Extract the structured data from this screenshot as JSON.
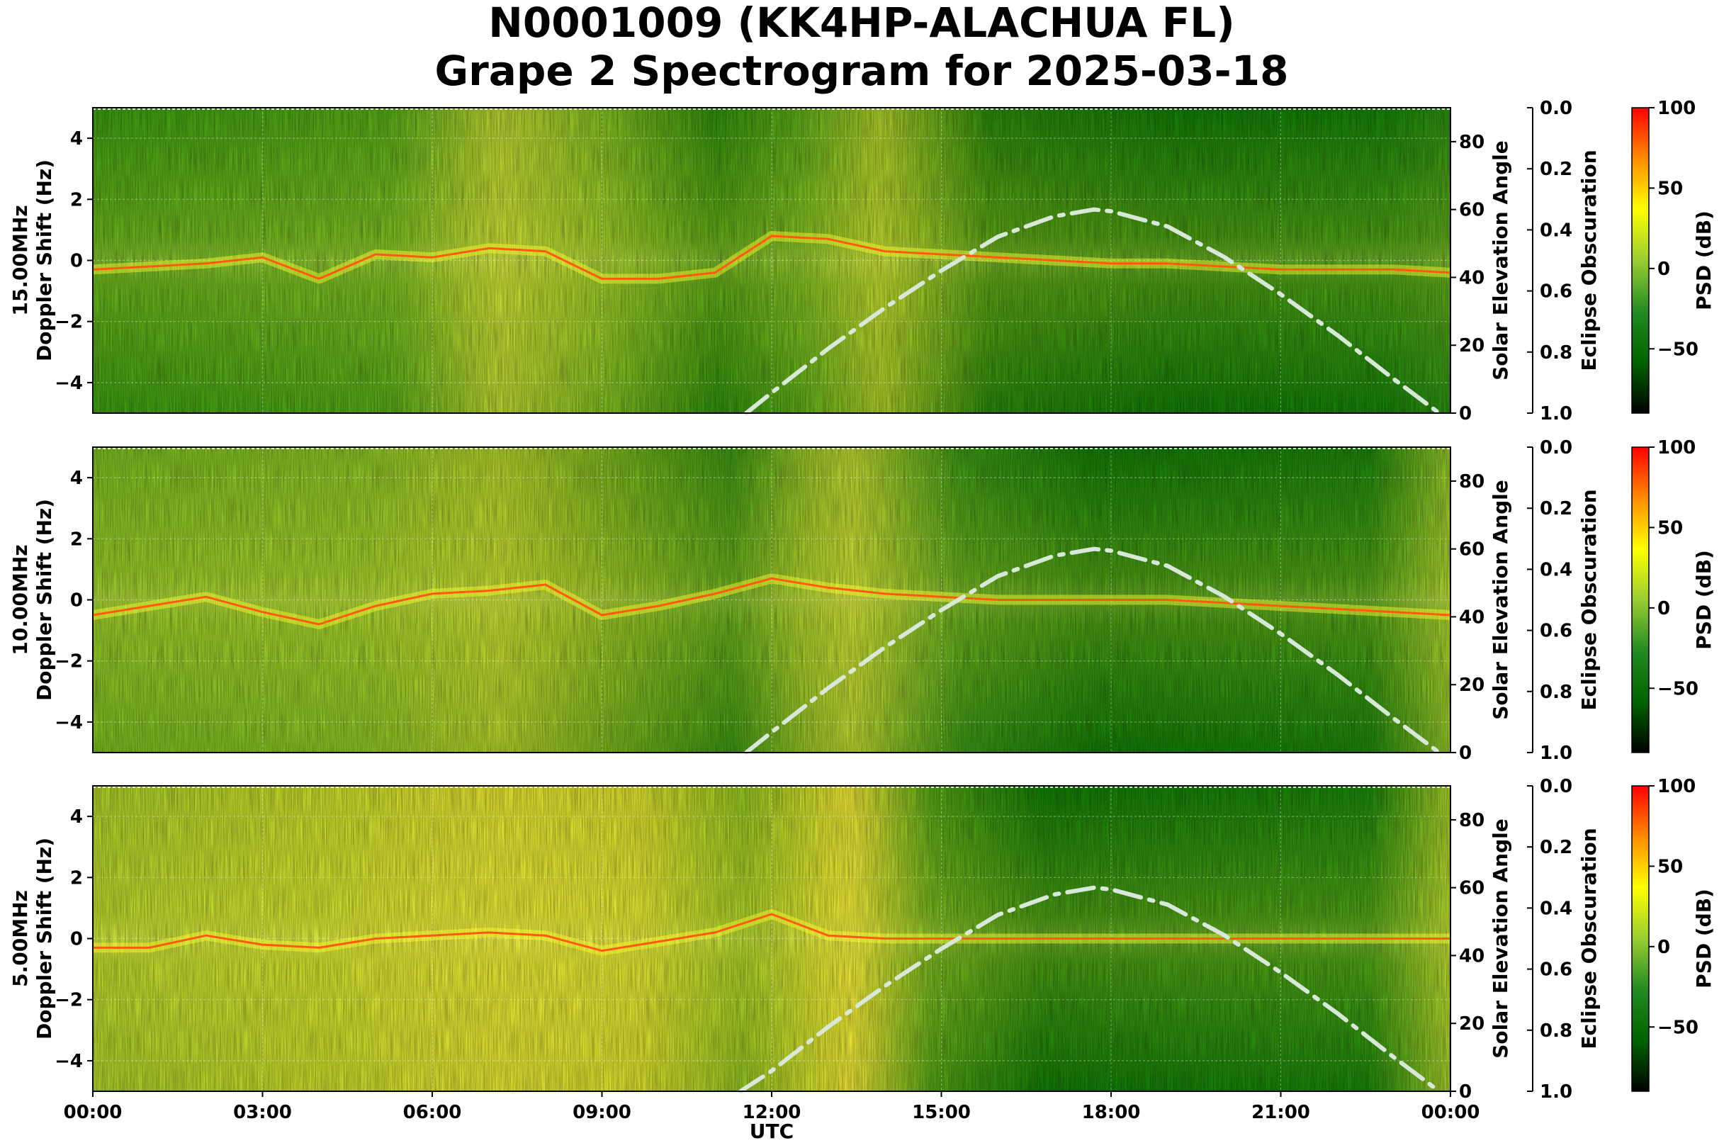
{
  "title": {
    "line1": "N0001009 (KK4HP-ALACHUA FL)",
    "line2": "Grape 2 Spectrogram for 2025-03-18"
  },
  "colors": {
    "colormap": [
      "#000000",
      "#006400",
      "#228b22",
      "#9acd32",
      "#ffff00",
      "#ff8c00",
      "#ff0000"
    ],
    "solar_curve": "#d8e8d8",
    "background_low": "#0a7a0a",
    "background_high": "#c8d820"
  },
  "chart_data": [
    {
      "type": "heatmap",
      "panel_label": "15.00MHz",
      "ylabel": "Doppler Shift (Hz)",
      "y2label": "Solar Elevation Angle",
      "y3label": "Eclipse Obscuration",
      "cbar_label": "PSD (dB)",
      "ylim": [
        -5,
        5
      ],
      "yticks": [
        -4,
        -2,
        0,
        2,
        4
      ],
      "y2lim": [
        0,
        90
      ],
      "y2ticks": [
        0,
        20,
        40,
        60,
        80
      ],
      "y3lim": [
        1.0,
        0.0
      ],
      "y3ticks": [
        "0.0",
        "0.2",
        "0.4",
        "0.6",
        "0.8",
        "1.0"
      ],
      "cbar_lim": [
        -90,
        100
      ],
      "cbar_ticks": [
        100,
        50,
        0,
        -50
      ],
      "doppler_trace": [
        [
          0,
          -0.3
        ],
        [
          1,
          -0.2
        ],
        [
          2,
          -0.1
        ],
        [
          3,
          0.1
        ],
        [
          4,
          -0.6
        ],
        [
          5,
          0.2
        ],
        [
          6,
          0.1
        ],
        [
          7,
          0.4
        ],
        [
          8,
          0.3
        ],
        [
          9,
          -0.6
        ],
        [
          10,
          -0.6
        ],
        [
          11,
          -0.4
        ],
        [
          12,
          0.8
        ],
        [
          13,
          0.7
        ],
        [
          14,
          0.3
        ],
        [
          15,
          0.2
        ],
        [
          16,
          0.1
        ],
        [
          17,
          0.0
        ],
        [
          18,
          -0.1
        ],
        [
          19,
          -0.1
        ],
        [
          20,
          -0.2
        ],
        [
          21,
          -0.3
        ],
        [
          22,
          -0.3
        ],
        [
          23,
          -0.3
        ],
        [
          24,
          -0.4
        ]
      ],
      "solar_elevation": [
        [
          11.55,
          0
        ],
        [
          12,
          6
        ],
        [
          13,
          19
        ],
        [
          14,
          31
        ],
        [
          15,
          42
        ],
        [
          16,
          52
        ],
        [
          17,
          58
        ],
        [
          17.7,
          60
        ],
        [
          18,
          59.5
        ],
        [
          19,
          55
        ],
        [
          20,
          46
        ],
        [
          21,
          35
        ],
        [
          22,
          23
        ],
        [
          23,
          10
        ],
        [
          23.8,
          0
        ]
      ]
    },
    {
      "type": "heatmap",
      "panel_label": "10.00MHz",
      "ylabel": "Doppler Shift (Hz)",
      "y2label": "Solar Elevation Angle",
      "y3label": "Eclipse Obscuration",
      "cbar_label": "PSD (dB)",
      "ylim": [
        -5,
        5
      ],
      "yticks": [
        -4,
        -2,
        0,
        2,
        4
      ],
      "y2lim": [
        0,
        90
      ],
      "y2ticks": [
        0,
        20,
        40,
        60,
        80
      ],
      "y3lim": [
        1.0,
        0.0
      ],
      "y3ticks": [
        "0.0",
        "0.2",
        "0.4",
        "0.6",
        "0.8",
        "1.0"
      ],
      "cbar_lim": [
        -90,
        100
      ],
      "cbar_ticks": [
        100,
        50,
        0,
        -50
      ],
      "doppler_trace": [
        [
          0,
          -0.5
        ],
        [
          1,
          -0.2
        ],
        [
          2,
          0.1
        ],
        [
          3,
          -0.4
        ],
        [
          4,
          -0.8
        ],
        [
          5,
          -0.2
        ],
        [
          6,
          0.2
        ],
        [
          7,
          0.3
        ],
        [
          8,
          0.5
        ],
        [
          9,
          -0.5
        ],
        [
          10,
          -0.2
        ],
        [
          11,
          0.2
        ],
        [
          12,
          0.7
        ],
        [
          13,
          0.4
        ],
        [
          14,
          0.2
        ],
        [
          15,
          0.1
        ],
        [
          16,
          0.0
        ],
        [
          17,
          0.0
        ],
        [
          18,
          0.0
        ],
        [
          19,
          0.0
        ],
        [
          20,
          -0.1
        ],
        [
          21,
          -0.2
        ],
        [
          22,
          -0.3
        ],
        [
          23,
          -0.4
        ],
        [
          24,
          -0.5
        ]
      ],
      "solar_elevation": [
        [
          11.55,
          0
        ],
        [
          12,
          6
        ],
        [
          13,
          19
        ],
        [
          14,
          31
        ],
        [
          15,
          42
        ],
        [
          16,
          52
        ],
        [
          17,
          58
        ],
        [
          17.7,
          60
        ],
        [
          18,
          59.5
        ],
        [
          19,
          55
        ],
        [
          20,
          46
        ],
        [
          21,
          35
        ],
        [
          22,
          23
        ],
        [
          23,
          10
        ],
        [
          23.8,
          0
        ]
      ]
    },
    {
      "type": "heatmap",
      "panel_label": "5.00MHz",
      "ylabel": "Doppler Shift (Hz)",
      "y2label": "Solar Elevation Angle",
      "y3label": "Eclipse Obscuration",
      "cbar_label": "PSD (dB)",
      "xlabel": "UTC",
      "xticks": [
        "00:00",
        "03:00",
        "06:00",
        "09:00",
        "12:00",
        "15:00",
        "18:00",
        "21:00",
        "00:00"
      ],
      "xlim": [
        0,
        24
      ],
      "ylim": [
        -5,
        5
      ],
      "yticks": [
        -4,
        -2,
        0,
        2,
        4
      ],
      "y2lim": [
        0,
        90
      ],
      "y2ticks": [
        0,
        20,
        40,
        60,
        80
      ],
      "y3lim": [
        1.0,
        0.0
      ],
      "y3ticks": [
        "0.0",
        "0.2",
        "0.4",
        "0.6",
        "0.8",
        "1.0"
      ],
      "cbar_lim": [
        -90,
        100
      ],
      "cbar_ticks": [
        100,
        50,
        0,
        -50
      ],
      "doppler_trace": [
        [
          0,
          -0.3
        ],
        [
          1,
          -0.3
        ],
        [
          2,
          0.1
        ],
        [
          3,
          -0.2
        ],
        [
          4,
          -0.3
        ],
        [
          5,
          0.0
        ],
        [
          6,
          0.1
        ],
        [
          7,
          0.2
        ],
        [
          8,
          0.1
        ],
        [
          9,
          -0.4
        ],
        [
          10,
          -0.1
        ],
        [
          11,
          0.2
        ],
        [
          12,
          0.8
        ],
        [
          13,
          0.1
        ],
        [
          14,
          0.0
        ],
        [
          15,
          0.0
        ],
        [
          16,
          0.0
        ],
        [
          17,
          0.0
        ],
        [
          18,
          0.0
        ],
        [
          19,
          0.0
        ],
        [
          20,
          0.0
        ],
        [
          21,
          0.0
        ],
        [
          22,
          0.0
        ],
        [
          23,
          0.0
        ],
        [
          24,
          0.0
        ]
      ],
      "solar_elevation": [
        [
          11.45,
          0
        ],
        [
          12,
          6
        ],
        [
          13,
          19
        ],
        [
          14,
          31
        ],
        [
          15,
          42
        ],
        [
          16,
          52
        ],
        [
          17,
          58
        ],
        [
          17.7,
          60
        ],
        [
          18,
          59.5
        ],
        [
          19,
          55
        ],
        [
          20,
          46
        ],
        [
          21,
          35
        ],
        [
          22,
          23
        ],
        [
          23,
          10
        ],
        [
          23.8,
          0
        ]
      ]
    }
  ]
}
